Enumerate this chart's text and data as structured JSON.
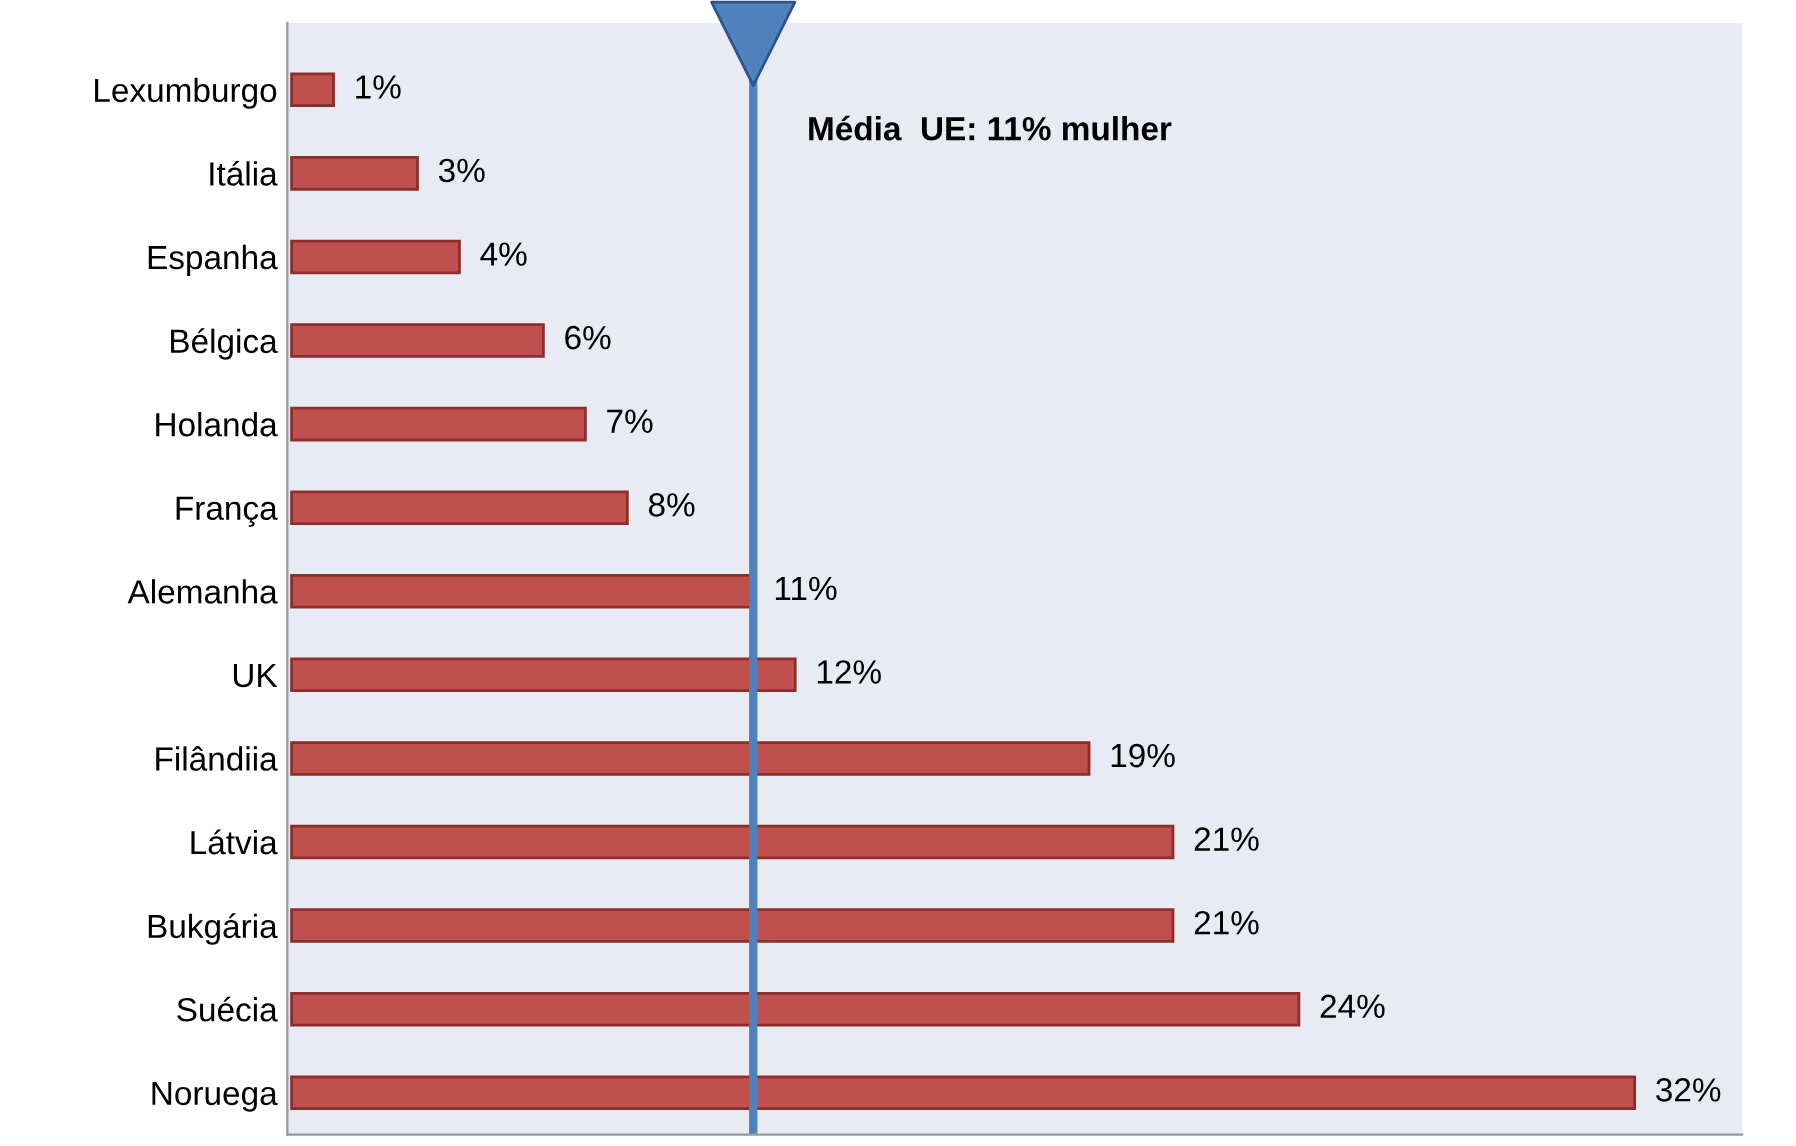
{
  "chart_data": {
    "type": "bar",
    "orientation": "horizontal",
    "categories": [
      "Lexumburgo",
      "Itália",
      "Espanha",
      "Bélgica",
      "Holanda",
      "França",
      "Alemanha",
      "UK",
      "Filândiia",
      "Látvia",
      "Bukgária",
      "Suécia",
      "Noruega"
    ],
    "values": [
      1,
      3,
      4,
      6,
      7,
      8,
      11,
      12,
      19,
      21,
      21,
      24,
      32
    ],
    "value_labels": [
      "1%",
      "3%",
      "4%",
      "6%",
      "7%",
      "8%",
      "11%",
      "12%",
      "19%",
      "21%",
      "21%",
      "24%",
      "32%"
    ],
    "color": "#c0504d",
    "ref_lines": [
      {
        "axis": "x",
        "value": 11,
        "label": "Média  UE: 11% mulher",
        "color": "#4f81bd"
      }
    ],
    "grid": false,
    "legend": false
  }
}
